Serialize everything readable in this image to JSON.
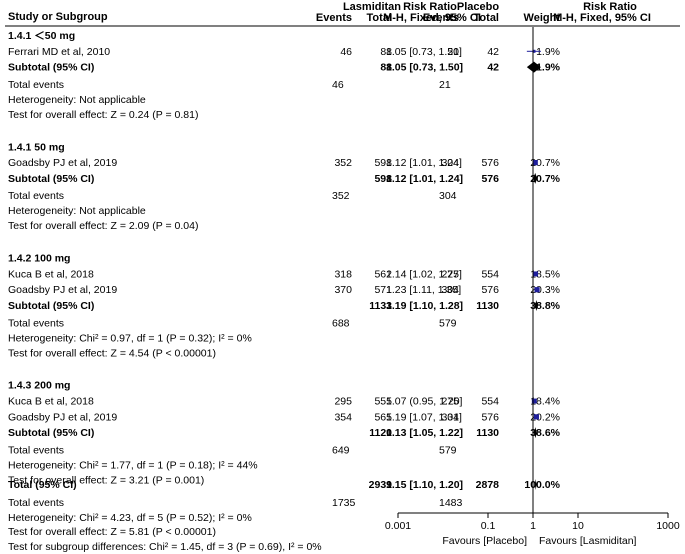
{
  "chart_data": {
    "type": "forest",
    "columns": {
      "study": "Study or Subgroup",
      "group1": "Lasmiditan",
      "group2": "Placebo",
      "events": "Events",
      "total": "Total",
      "weight": "Weight",
      "rr_title": "Risk Ratio",
      "rr_method": "M-H, Fixed, 95% CI"
    },
    "subgroups": [
      {
        "name": "1.4.1 ＜50 mg",
        "studies": [
          {
            "name": "Ferrari MD et al, 2010",
            "e1": "46",
            "n1": "88",
            "e2": "21",
            "n2": "42",
            "weight": "1.9%",
            "ci_text": "1.05 [0.73, 1.50]",
            "rr": 1.05,
            "lo": 0.73,
            "hi": 1.5,
            "w": 1.9
          }
        ],
        "subtotal": {
          "label": "Subtotal (95% CI)",
          "n1": "88",
          "n2": "42",
          "weight": "1.9%",
          "ci_text": "1.05 [0.73, 1.50]",
          "rr": 1.05,
          "lo": 0.73,
          "hi": 1.5
        },
        "total_events": {
          "label": "Total events",
          "e1": "46",
          "e2": "21"
        },
        "heterogeneity": "Heterogeneity: Not applicable",
        "overall_effect": "Test for overall effect: Z = 0.24 (P = 0.81)"
      },
      {
        "name": "1.4.1 50 mg",
        "studies": [
          {
            "name": "Goadsby PJ et al, 2019",
            "e1": "352",
            "n1": "598",
            "e2": "304",
            "n2": "576",
            "weight": "20.7%",
            "ci_text": "1.12 [1.01, 1.24]",
            "rr": 1.12,
            "lo": 1.01,
            "hi": 1.24,
            "w": 20.7
          }
        ],
        "subtotal": {
          "label": "Subtotal (95% CI)",
          "n1": "598",
          "n2": "576",
          "weight": "20.7%",
          "ci_text": "1.12 [1.01, 1.24]",
          "rr": 1.12,
          "lo": 1.01,
          "hi": 1.24
        },
        "total_events": {
          "label": "Total events",
          "e1": "352",
          "e2": "304"
        },
        "heterogeneity": "Heterogeneity: Not applicable",
        "overall_effect": "Test for overall effect: Z = 2.09 (P = 0.04)"
      },
      {
        "name": "1.4.2 100 mg",
        "studies": [
          {
            "name": "Kuca B et al, 2018",
            "e1": "318",
            "n1": "562",
            "e2": "275",
            "n2": "554",
            "weight": "18.5%",
            "ci_text": "1.14 [1.02, 1.27]",
            "rr": 1.14,
            "lo": 1.02,
            "hi": 1.27,
            "w": 18.5
          },
          {
            "name": "Goadsby PJ et al, 2019",
            "e1": "370",
            "n1": "571",
            "e2": "304",
            "n2": "576",
            "weight": "20.3%",
            "ci_text": "1.23 [1.11, 1.35]",
            "rr": 1.23,
            "lo": 1.11,
            "hi": 1.35,
            "w": 20.3
          }
        ],
        "subtotal": {
          "label": "Subtotal (95% CI)",
          "n1": "1133",
          "n2": "1130",
          "weight": "38.8%",
          "ci_text": "1.19 [1.10, 1.28]",
          "rr": 1.19,
          "lo": 1.1,
          "hi": 1.28
        },
        "total_events": {
          "label": "Total events",
          "e1": "688",
          "e2": "579"
        },
        "heterogeneity": "Heterogeneity: Chi² = 0.97, df = 1 (P = 0.32); I² = 0%",
        "overall_effect": "Test for overall effect: Z = 4.54 (P < 0.00001)"
      },
      {
        "name": "1.4.3 200 mg",
        "studies": [
          {
            "name": "Kuca B et al, 2018",
            "e1": "295",
            "n1": "555",
            "e2": "275",
            "n2": "554",
            "weight": "18.4%",
            "ci_text": "1.07 (0.95, 1.20]",
            "rr": 1.07,
            "lo": 0.95,
            "hi": 1.2,
            "w": 18.4
          },
          {
            "name": "Goadsby PJ et al, 2019",
            "e1": "354",
            "n1": "565",
            "e2": "304",
            "n2": "576",
            "weight": "20.2%",
            "ci_text": "1.19 [1.07, 1.31]",
            "rr": 1.19,
            "lo": 1.07,
            "hi": 1.31,
            "w": 20.2
          }
        ],
        "subtotal": {
          "label": "Subtotal (95% CI)",
          "n1": "1120",
          "n2": "1130",
          "weight": "38.6%",
          "ci_text": "1.13 [1.05, 1.22]",
          "rr": 1.13,
          "lo": 1.05,
          "hi": 1.22
        },
        "total_events": {
          "label": "Total events",
          "e1": "649",
          "e2": "579"
        },
        "heterogeneity": "Heterogeneity: Chi² = 1.77, df = 1 (P = 0.18); I² = 44%",
        "overall_effect": "Test for overall effect: Z = 3.21 (P = 0.001)"
      }
    ],
    "overall": {
      "label": "Total (95% CI)",
      "n1": "2939",
      "n2": "2878",
      "weight": "100.0%",
      "ci_text": "1.15 [1.10, 1.20]",
      "rr": 1.15,
      "lo": 1.1,
      "hi": 1.2,
      "total_events": {
        "label": "Total events",
        "e1": "1735",
        "e2": "1483"
      },
      "heterogeneity": "Heterogeneity: Chi² = 4.23, df = 5 (P = 0.52); I² = 0%",
      "overall_effect": "Test for overall effect: Z = 5.81 (P < 0.00001)",
      "subgroup_diff": "Test for subgroup differences: Chi² = 1.45, df = 3 (P = 0.69), I² = 0%"
    },
    "axis": {
      "scale": "log",
      "range": [
        0.001,
        1000
      ],
      "ticks": [
        0.001,
        0.1,
        1,
        10,
        1000
      ],
      "tick_labels": [
        "0.001",
        "0.1",
        "1",
        "10",
        "1000"
      ],
      "favours_left": "Favours [Placebo]",
      "favours_right": "Favours [Lasmiditan]"
    },
    "colors": {
      "study_marker": "#1f1f9c",
      "ci_line": "#1f1f9c",
      "diamond": "#000000",
      "line": "#000000"
    }
  }
}
